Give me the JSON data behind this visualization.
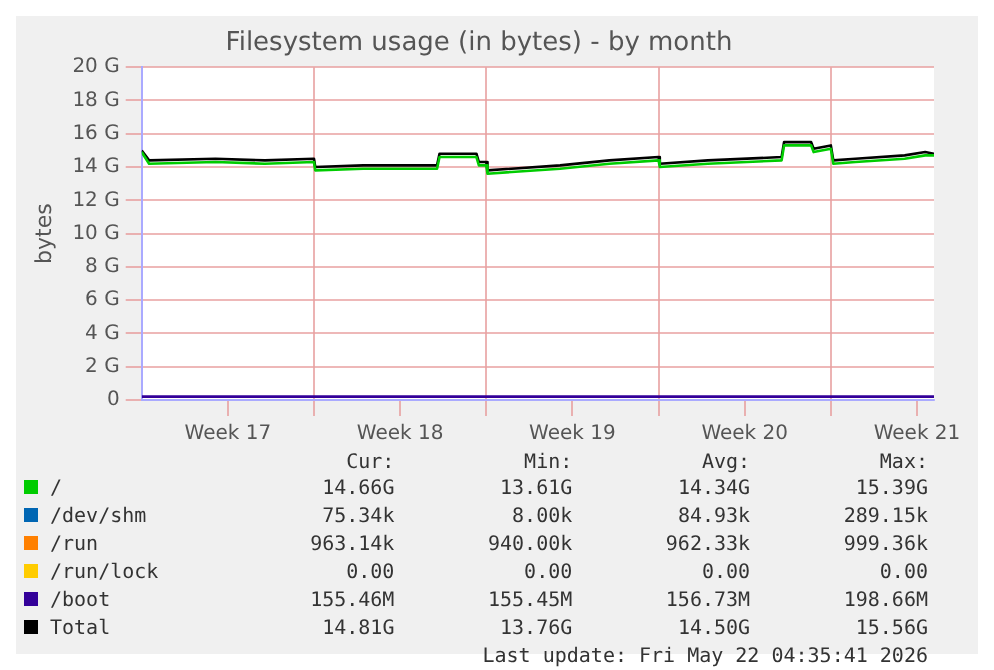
{
  "chart_data": {
    "type": "line",
    "title": "Filesystem usage (in bytes) - by month",
    "ylabel": "bytes",
    "xlim": [
      "2026-04-20T00:00",
      "2026-05-22T04:35"
    ],
    "xticks": [
      {
        "value": "2026-04-23T12:00",
        "label": "Week 17"
      },
      {
        "value": "2026-04-27T00:00",
        "label": null
      },
      {
        "value": "2026-04-30T12:00",
        "label": "Week 18"
      },
      {
        "value": "2026-05-04T00:00",
        "label": null
      },
      {
        "value": "2026-05-07T12:00",
        "label": "Week 19"
      },
      {
        "value": "2026-05-11T00:00",
        "label": null
      },
      {
        "value": "2026-05-14T12:00",
        "label": "Week 20"
      },
      {
        "value": "2026-05-18T00:00",
        "label": null
      },
      {
        "value": "2026-05-21T12:00",
        "label": "Week 21"
      }
    ],
    "ylim": [
      0,
      20
    ],
    "yticks": [
      {
        "value": 0,
        "label": "0"
      },
      {
        "value": 2,
        "label": "2 G"
      },
      {
        "value": 4,
        "label": "4 G"
      },
      {
        "value": 6,
        "label": "6 G"
      },
      {
        "value": 8,
        "label": "8 G"
      },
      {
        "value": 10,
        "label": "10 G"
      },
      {
        "value": 12,
        "label": "12 G"
      },
      {
        "value": 14,
        "label": "14 G"
      },
      {
        "value": 16,
        "label": "16 G"
      },
      {
        "value": 18,
        "label": "18 G"
      },
      {
        "value": 20,
        "label": "20 G"
      }
    ],
    "grid": true,
    "legend": "bottom",
    "line_style": "solid",
    "marker": "none",
    "series": [
      {
        "name": "/",
        "color": "#00cc00",
        "x": [
          "2026-04-20T00:00",
          "2026-04-20T07:12",
          "2026-04-23T00:00",
          "2026-04-25T00:00",
          "2026-04-27T00:00",
          "2026-04-27T01:12",
          "2026-04-29T00:00",
          "2026-05-02T00:00",
          "2026-05-02T02:24",
          "2026-05-03T14:24",
          "2026-05-03T16:48",
          "2026-05-04T00:00",
          "2026-05-04T01:12",
          "2026-05-07T00:00",
          "2026-05-09T00:00",
          "2026-05-11T00:00",
          "2026-05-11T01:12",
          "2026-05-13T00:00",
          "2026-05-16T00:00",
          "2026-05-16T02:24",
          "2026-05-17T04:48",
          "2026-05-17T07:12",
          "2026-05-18T00:00",
          "2026-05-18T02:24",
          "2026-05-19T00:00",
          "2026-05-21T00:00",
          "2026-05-21T20:00",
          "2026-05-22T04:35"
        ],
        "values": [
          14.9,
          14.2,
          14.3,
          14.2,
          14.3,
          13.8,
          13.9,
          13.9,
          14.6,
          14.6,
          14.1,
          14.1,
          13.6,
          13.9,
          14.2,
          14.4,
          14.0,
          14.2,
          14.4,
          15.3,
          15.3,
          14.9,
          15.1,
          14.2,
          14.3,
          14.5,
          14.7,
          14.7
        ]
      },
      {
        "name": "/dev/shm",
        "color": "#0066b3"
      },
      {
        "name": "/run",
        "color": "#ff8000"
      },
      {
        "name": "/run/lock",
        "color": "#ffcc00"
      },
      {
        "name": "/boot",
        "color": "#330099",
        "x": [
          "2026-04-20T00:00",
          "2026-05-22T04:35"
        ],
        "values": [
          0.2,
          0.2
        ]
      },
      {
        "name": "Total",
        "color": "#000000",
        "x": [
          "2026-04-20T00:00",
          "2026-04-20T07:12",
          "2026-04-23T00:00",
          "2026-04-25T00:00",
          "2026-04-27T00:00",
          "2026-04-27T01:12",
          "2026-04-29T00:00",
          "2026-05-02T00:00",
          "2026-05-02T02:24",
          "2026-05-03T14:24",
          "2026-05-03T16:48",
          "2026-05-04T00:00",
          "2026-05-04T01:12",
          "2026-05-07T00:00",
          "2026-05-09T00:00",
          "2026-05-11T00:00",
          "2026-05-11T01:12",
          "2026-05-13T00:00",
          "2026-05-16T00:00",
          "2026-05-16T02:24",
          "2026-05-17T04:48",
          "2026-05-17T07:12",
          "2026-05-18T00:00",
          "2026-05-18T02:24",
          "2026-05-19T00:00",
          "2026-05-21T00:00",
          "2026-05-21T20:00",
          "2026-05-22T04:35"
        ],
        "values": [
          15.0,
          14.4,
          14.5,
          14.4,
          14.5,
          14.0,
          14.1,
          14.1,
          14.8,
          14.8,
          14.3,
          14.3,
          13.8,
          14.1,
          14.4,
          14.6,
          14.2,
          14.4,
          14.6,
          15.5,
          15.5,
          15.1,
          15.3,
          14.4,
          14.5,
          14.7,
          14.9,
          14.8
        ]
      }
    ],
    "annotations": [
      "Cur:",
      "Min:",
      "Avg:",
      "Max:",
      "14.66G",
      "13.61G",
      "14.34G",
      "15.39G",
      "75.34k",
      "8.00k",
      "84.93k",
      "289.15k",
      "963.14k",
      "940.00k",
      "962.33k",
      "999.36k",
      "0.00",
      "0.00",
      "0.00",
      "0.00",
      "155.46M",
      "155.45M",
      "156.73M",
      "198.66M",
      "14.81G",
      "13.76G",
      "14.50G",
      "15.56G",
      "Last update: Fri May 22 04:35:41 2026"
    ]
  }
}
